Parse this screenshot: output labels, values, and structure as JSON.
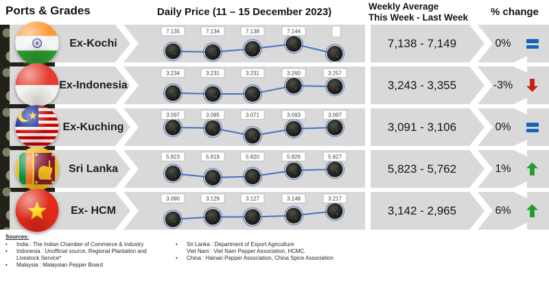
{
  "header": {
    "ports_grades": "Ports & Grades",
    "daily_price": "Daily Price (11 – 15 December 2023)",
    "weekly_avg_line1": "Weekly Average",
    "weekly_avg_line2": "This Week - Last Week",
    "pct_change": "% change"
  },
  "rows": [
    {
      "port": "Ex-Kochi",
      "flag": "india",
      "weekly": "7,138 - 7,149",
      "pct": "0%",
      "trend": "equal"
    },
    {
      "port": "Ex-Indonesia",
      "flag": "indonesia",
      "weekly": "3,243 - 3,355",
      "pct": "-3%",
      "trend": "down"
    },
    {
      "port": "Ex-Kuching",
      "flag": "malaysia",
      "weekly": "3,091 - 3,106",
      "pct": "0%",
      "trend": "equal"
    },
    {
      "port": "Sri Lanka",
      "flag": "sri-lanka",
      "weekly": "5,823 - 5,762",
      "pct": "1%",
      "trend": "up"
    },
    {
      "port": "Ex- HCM",
      "flag": "vietnam",
      "weekly": "3,142 - 2,965",
      "pct": "6%",
      "trend": "up"
    }
  ],
  "chart_data": {
    "type": "line",
    "title": "Daily Price (11 – 15 December 2023)",
    "x_implied_dates": [
      "11 Dec 2023",
      "12 Dec 2023",
      "13 Dec 2023",
      "14 Dec 2023",
      "15 Dec 2023"
    ],
    "legend_position": "none",
    "grid": false,
    "series": [
      {
        "name": "Ex-Kochi",
        "values": [
          7135,
          7134,
          7138,
          7144,
          null
        ],
        "point_labels": [
          "7.135",
          "7.134",
          "7.138",
          "7.144",
          ""
        ]
      },
      {
        "name": "Ex-Indonesia",
        "values": [
          3234,
          3231,
          3231,
          3260,
          3257
        ],
        "point_labels": [
          "3.234",
          "3.231",
          "3.231",
          "3.260",
          "3.257"
        ]
      },
      {
        "name": "Ex-Kuching",
        "values": [
          3097,
          3095,
          3071,
          3093,
          3097
        ],
        "point_labels": [
          "3.097",
          "3.095",
          "3.071",
          "3.093",
          "3.097"
        ]
      },
      {
        "name": "Sri Lanka",
        "values": [
          5823,
          5819,
          5820,
          5826,
          5827
        ],
        "point_labels": [
          "5.823",
          "5.819",
          "5.820",
          "5.826",
          "5.827"
        ]
      },
      {
        "name": "Ex- HCM",
        "values": [
          3090,
          3129,
          3127,
          3148,
          3217
        ],
        "point_labels": [
          "3.090",
          "3.129",
          "3.127",
          "3.148",
          "3.217"
        ]
      }
    ]
  },
  "sources": {
    "title": "Sources:",
    "left": [
      {
        "bullet": "•",
        "text": "India : The Indian Chamber of Commerce & Industry"
      },
      {
        "bullet": "•",
        "text": "Indonesia : Unofficial source, Regional Plantation and Livestock Service*"
      },
      {
        "bullet": "•",
        "text": "Malaysia : Malaysian Pepper Board"
      }
    ],
    "right": [
      {
        "bullet": "•",
        "text": "Sri Lanka : Department of Export Agriculture"
      },
      {
        "bullet": "",
        "text": "Viet Nam : Viet Nam Pepper Association, HCMC."
      },
      {
        "bullet": "•",
        "text": "China : Hainan Pepper Association, China Spice Association"
      }
    ]
  },
  "colors": {
    "band": "#D9D9D9",
    "line": "#4472C4",
    "trend_up": "#1F9D2F",
    "trend_down": "#C9210E",
    "trend_equal": "#1663BE"
  }
}
